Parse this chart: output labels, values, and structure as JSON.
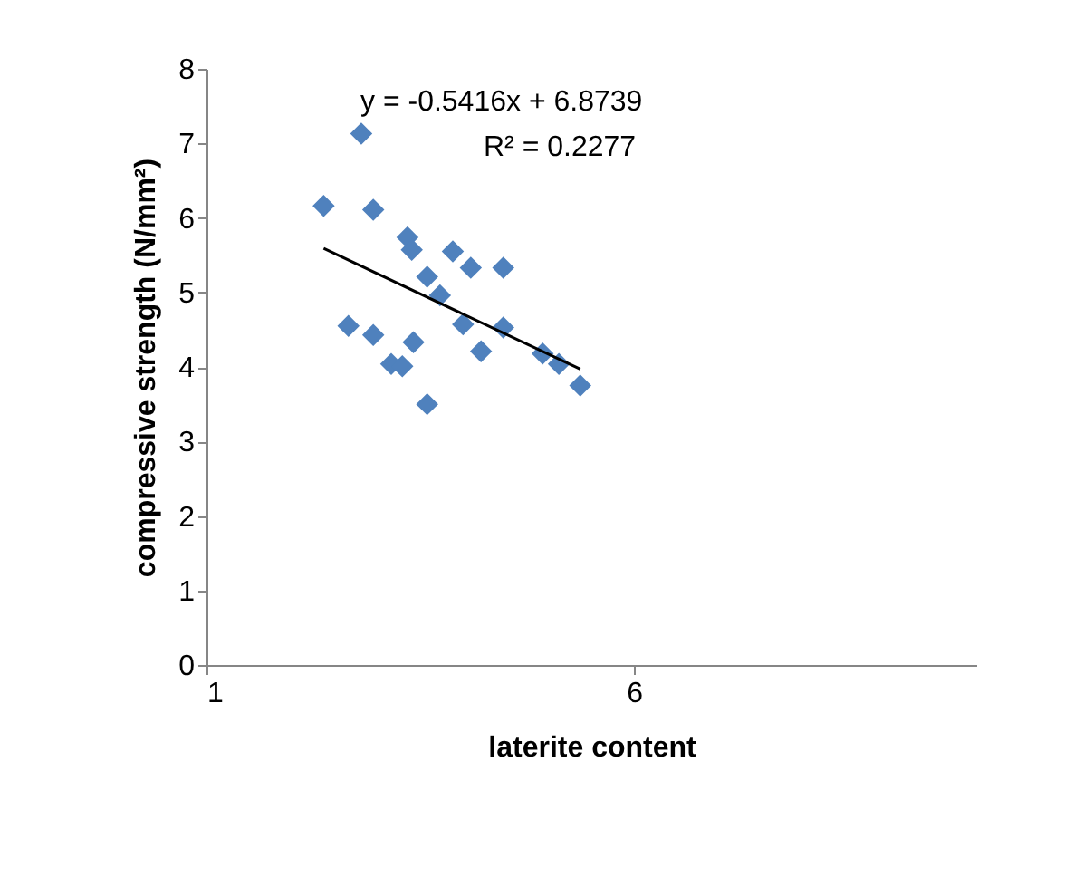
{
  "chart_data": {
    "type": "scatter",
    "xlabel": "laterite content",
    "ylabel": "compressive strength (N/mm²)",
    "xlim": [
      1,
      10
    ],
    "xticks": [
      1,
      6
    ],
    "ylim": [
      0,
      8
    ],
    "yticks": [
      0,
      1,
      2,
      3,
      4,
      5,
      6,
      7,
      8
    ],
    "grid": false,
    "series": [
      {
        "color": "#4f81bd",
        "marker": "diamond",
        "x": [
          2.81,
          2.37,
          2.95,
          3.35,
          3.4,
          3.88,
          4.09,
          4.47,
          3.58,
          3.73,
          2.66,
          2.95,
          3.42,
          3.16,
          3.29,
          4.0,
          4.47,
          4.21,
          4.93,
          5.12,
          5.37,
          3.58
        ],
        "values": [
          7.13,
          6.16,
          6.11,
          5.74,
          5.57,
          5.55,
          5.33,
          5.33,
          5.21,
          4.96,
          4.55,
          4.43,
          4.33,
          4.04,
          4.01,
          4.57,
          4.53,
          4.21,
          4.18,
          4.04,
          3.75,
          3.5
        ]
      },
      {
        "type": "line",
        "color": "#000000",
        "line_style": "solid",
        "marker": "none",
        "x": [
          2.37,
          5.37
        ],
        "values": [
          5.59,
          3.97
        ]
      }
    ],
    "annotations": [
      "y = -0.5416x + 6.8739",
      "R² = 0.2277"
    ]
  }
}
